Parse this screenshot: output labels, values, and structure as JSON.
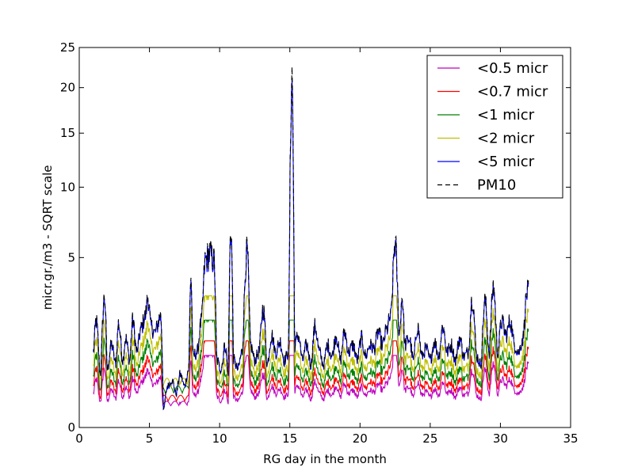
{
  "chart_data": {
    "type": "line",
    "title": "",
    "xlabel": "RG day in the month",
    "ylabel": "micr.gr./m3 - SQRT scale",
    "y_scale": "sqrt",
    "xlim": [
      0,
      35
    ],
    "ylim": [
      0,
      25
    ],
    "xticks": [
      0,
      5,
      10,
      15,
      20,
      25,
      30,
      35
    ],
    "yticks": [
      0,
      5,
      10,
      15,
      20,
      25
    ],
    "grid": false,
    "legend_position": "top-right",
    "pm10_anchors": [
      [
        1.0,
        1.0
      ],
      [
        1.2,
        2.0
      ],
      [
        1.5,
        0.5
      ],
      [
        1.8,
        3.0
      ],
      [
        2.0,
        0.6
      ],
      [
        2.3,
        1.2
      ],
      [
        2.6,
        0.7
      ],
      [
        2.8,
        1.9
      ],
      [
        3.1,
        0.8
      ],
      [
        3.3,
        1.4
      ],
      [
        3.6,
        0.8
      ],
      [
        3.8,
        2.0
      ],
      [
        4.1,
        1.0
      ],
      [
        4.4,
        1.7
      ],
      [
        4.7,
        2.2
      ],
      [
        4.9,
        3.0
      ],
      [
        5.1,
        1.8
      ],
      [
        5.4,
        1.6
      ],
      [
        5.8,
        2.2
      ],
      [
        6.0,
        0.05
      ],
      [
        6.3,
        0.3
      ],
      [
        6.6,
        0.4
      ],
      [
        6.9,
        0.2
      ],
      [
        7.2,
        0.5
      ],
      [
        7.5,
        0.3
      ],
      [
        7.8,
        0.6
      ],
      [
        7.95,
        4.0
      ],
      [
        8.1,
        0.9
      ],
      [
        8.4,
        1.0
      ],
      [
        8.7,
        2.0
      ],
      [
        9.0,
        5.0
      ],
      [
        9.3,
        5.3
      ],
      [
        9.6,
        4.9
      ],
      [
        9.8,
        0.8
      ],
      [
        10.1,
        0.6
      ],
      [
        10.4,
        1.2
      ],
      [
        10.6,
        0.5
      ],
      [
        10.8,
        7.0
      ],
      [
        11.0,
        0.8
      ],
      [
        11.3,
        0.6
      ],
      [
        11.6,
        1.0
      ],
      [
        11.95,
        5.5
      ],
      [
        12.2,
        1.2
      ],
      [
        12.5,
        0.8
      ],
      [
        12.8,
        1.0
      ],
      [
        13.1,
        2.5
      ],
      [
        13.4,
        0.7
      ],
      [
        13.7,
        1.5
      ],
      [
        14.0,
        1.0
      ],
      [
        14.3,
        1.3
      ],
      [
        14.6,
        0.8
      ],
      [
        14.9,
        1.0
      ],
      [
        15.15,
        22.0
      ],
      [
        15.35,
        1.2
      ],
      [
        15.6,
        1.5
      ],
      [
        15.9,
        0.8
      ],
      [
        16.2,
        1.2
      ],
      [
        16.5,
        0.7
      ],
      [
        16.8,
        1.8
      ],
      [
        17.1,
        1.0
      ],
      [
        17.4,
        0.7
      ],
      [
        17.7,
        1.2
      ],
      [
        18.0,
        0.9
      ],
      [
        18.3,
        1.5
      ],
      [
        18.6,
        0.8
      ],
      [
        18.9,
        1.6
      ],
      [
        19.2,
        1.0
      ],
      [
        19.5,
        1.2
      ],
      [
        19.8,
        0.8
      ],
      [
        20.1,
        1.4
      ],
      [
        20.4,
        0.9
      ],
      [
        20.7,
        1.2
      ],
      [
        21.0,
        1.1
      ],
      [
        21.3,
        1.6
      ],
      [
        21.6,
        1.2
      ],
      [
        21.9,
        1.7
      ],
      [
        22.2,
        2.2
      ],
      [
        22.5,
        6.0
      ],
      [
        22.8,
        1.5
      ],
      [
        23.0,
        3.0
      ],
      [
        23.2,
        1.2
      ],
      [
        23.5,
        1.4
      ],
      [
        23.8,
        0.8
      ],
      [
        24.1,
        1.8
      ],
      [
        24.4,
        0.9
      ],
      [
        24.7,
        1.1
      ],
      [
        25.0,
        0.8
      ],
      [
        25.3,
        1.3
      ],
      [
        25.6,
        0.9
      ],
      [
        25.9,
        1.8
      ],
      [
        26.2,
        1.0
      ],
      [
        26.5,
        1.2
      ],
      [
        26.8,
        0.8
      ],
      [
        27.1,
        1.4
      ],
      [
        27.4,
        0.9
      ],
      [
        27.7,
        1.0
      ],
      [
        28.0,
        3.0
      ],
      [
        28.3,
        0.9
      ],
      [
        28.6,
        0.7
      ],
      [
        28.9,
        2.8
      ],
      [
        29.2,
        1.0
      ],
      [
        29.5,
        3.5
      ],
      [
        29.8,
        1.0
      ],
      [
        30.1,
        2.0
      ],
      [
        30.4,
        1.5
      ],
      [
        30.7,
        2.0
      ],
      [
        31.0,
        1.2
      ],
      [
        31.3,
        1.0
      ],
      [
        31.6,
        1.4
      ],
      [
        31.9,
        3.2
      ],
      [
        32.0,
        3.2
      ]
    ],
    "series": [
      {
        "name": "<0.5 micr",
        "color": "#bf00bf",
        "ratio": 0.2,
        "floor": 0.1,
        "cap": 0.9,
        "dash": "solid"
      },
      {
        "name": "<0.7 micr",
        "color": "#ff0000",
        "ratio": 0.3,
        "floor": 0.15,
        "cap": 1.3,
        "dash": "solid"
      },
      {
        "name": "<1 micr",
        "color": "#008000",
        "ratio": 0.45,
        "floor": 0.25,
        "cap": 2.0,
        "dash": "solid"
      },
      {
        "name": "<2 micr",
        "color": "#bfbf00",
        "ratio": 0.65,
        "floor": 0.35,
        "cap": 3.0,
        "dash": "solid"
      },
      {
        "name": "<5 micr",
        "color": "#0000ff",
        "ratio": 0.97,
        "floor": 0.05,
        "cap": 21.0,
        "dash": "solid"
      },
      {
        "name": "PM10",
        "color": "#000000",
        "ratio": 1.0,
        "floor": 0.05,
        "cap": 22.5,
        "dash": "dashed"
      }
    ]
  }
}
